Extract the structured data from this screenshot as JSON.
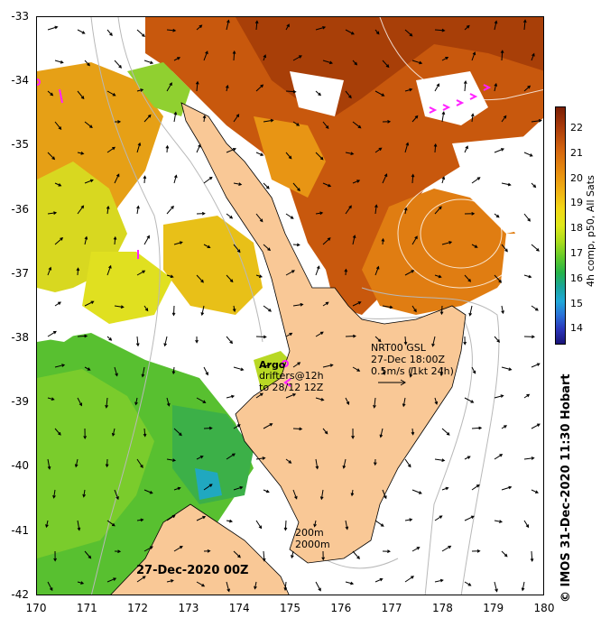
{
  "axes": {
    "y_ticks": [
      "-33",
      "-34",
      "-35",
      "-36",
      "-37",
      "-38",
      "-39",
      "-40",
      "-41",
      "-42"
    ],
    "x_ticks": [
      "170",
      "171",
      "172",
      "173",
      "174",
      "175",
      "176",
      "177",
      "178",
      "179",
      "180"
    ]
  },
  "colorbar": {
    "ticks": [
      "22",
      "21",
      "20",
      "19",
      "18",
      "17",
      "16",
      "15",
      "14"
    ],
    "label": "4h comp, p50, All Sats"
  },
  "legend": {
    "argo_label": "Argo",
    "drifters_line1": "drifters@12h",
    "drifters_line2": "to 28/12 12Z",
    "current_line1": "NRT00 GSL",
    "current_line2": "27-Dec 18:00Z",
    "current_line3": "0.5m/s (1kt 24h)",
    "depth_200": "200m",
    "depth_2000": "2000m"
  },
  "date_label": "27-Dec-2020 00Z",
  "credit": "© IMOS 31-Dec-2020 11:30 Hobart",
  "colors": {
    "land": "#f9c896",
    "sst_warm": "#d46a10",
    "sst_mid": "#f0b018",
    "sst_cool": "#d8e020",
    "sst_cold": "#50c030",
    "markers": "#ff20ff"
  }
}
